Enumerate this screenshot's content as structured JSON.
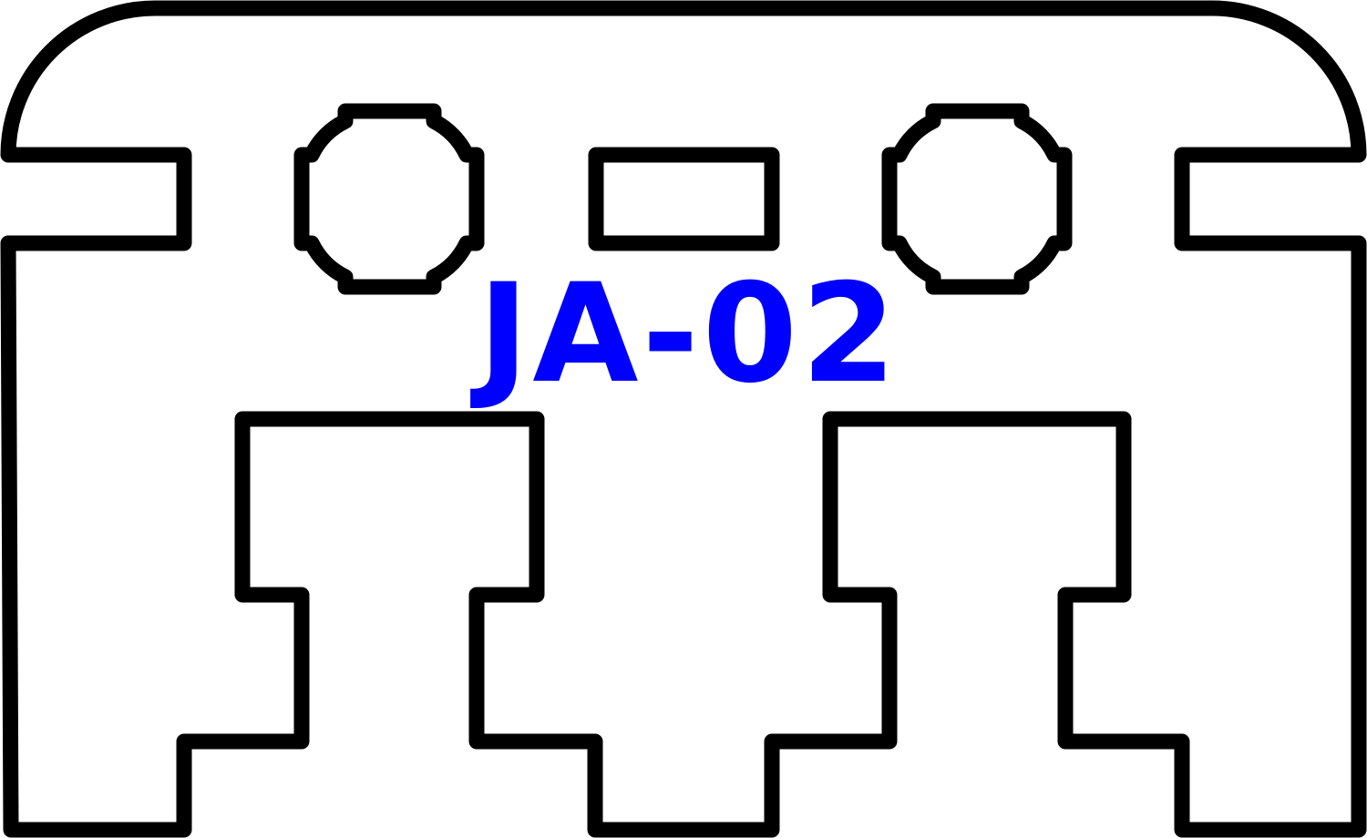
{
  "drawing": {
    "part_label": "JA-02",
    "label_color": "#0000ff",
    "outline_color": "#000000",
    "background_color": "#ffffff"
  }
}
